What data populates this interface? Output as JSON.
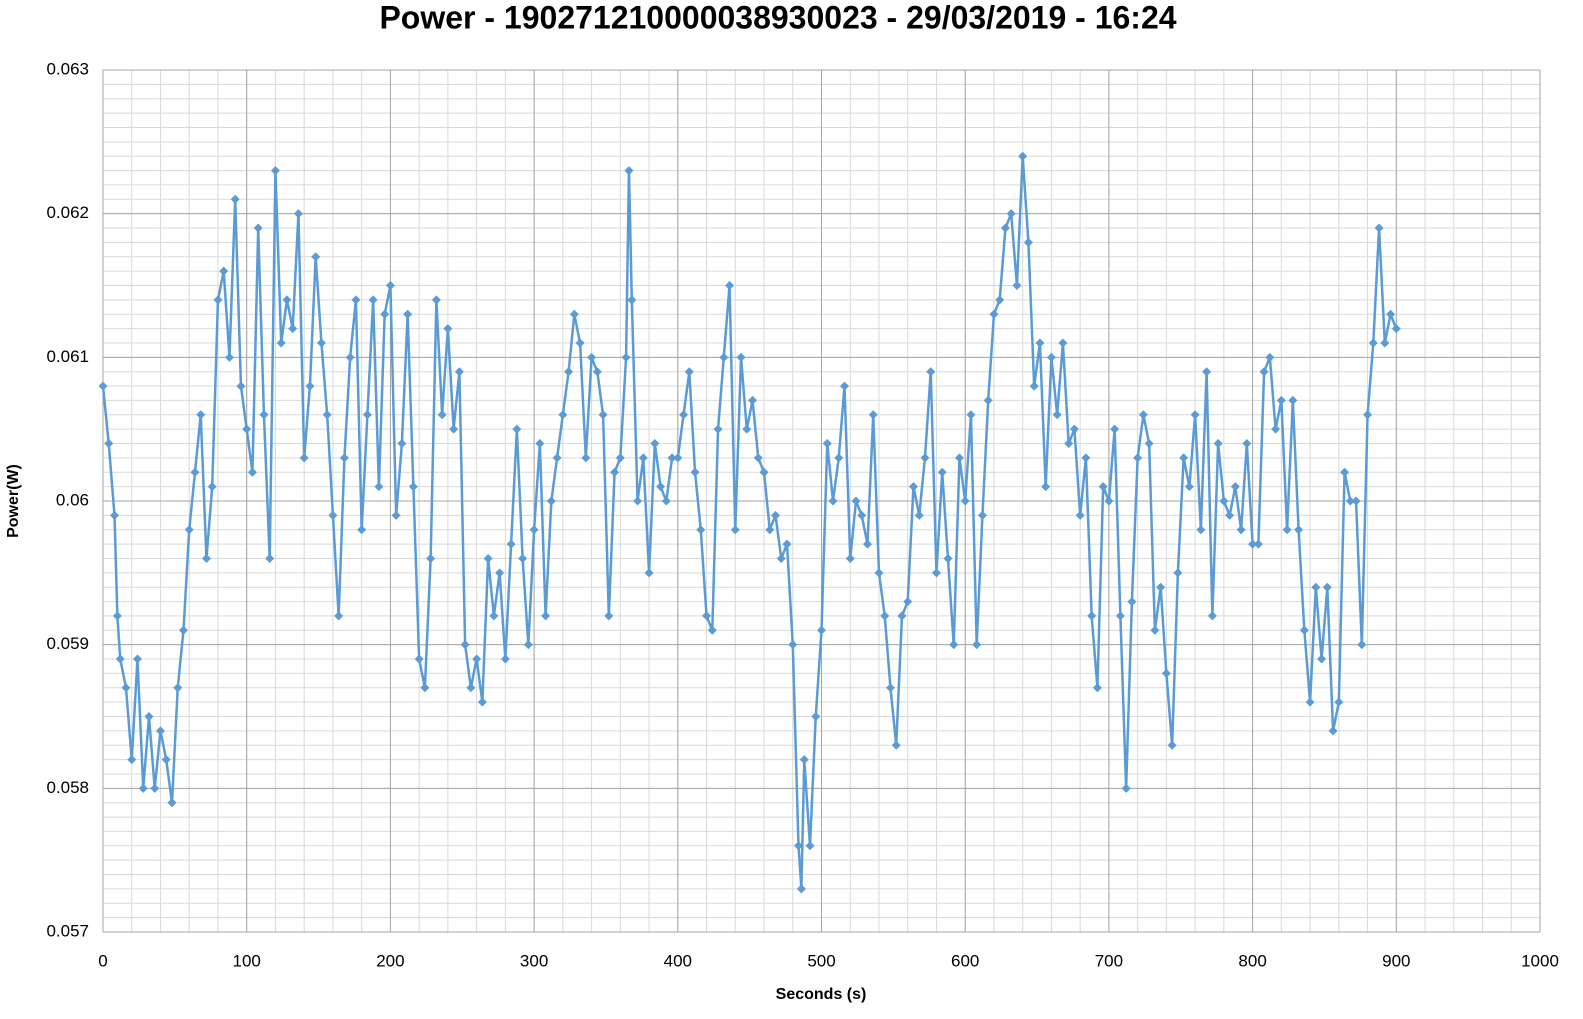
{
  "chart_data": {
    "type": "line",
    "title": "Power - 190271210000038930023 - 29/03/2019 - 16:24",
    "x_label": "Seconds (s)",
    "y_label": "Power(W)",
    "xlim": [
      0,
      1000
    ],
    "xticks": [
      0,
      100,
      200,
      300,
      400,
      500,
      600,
      700,
      800,
      900,
      1000
    ],
    "ylim": [
      0.057,
      0.063
    ],
    "yticks": [
      0.057,
      0.058,
      0.059,
      0.06,
      0.061,
      0.062,
      0.063
    ],
    "grid": true,
    "minor_grid": {
      "x": 20,
      "y": 0.0001
    },
    "marker": "diamond",
    "series": [
      {
        "name": "Power",
        "color": "#5b9bd5",
        "x": [
          0,
          4,
          8,
          10,
          12,
          16,
          20,
          24,
          28,
          32,
          36,
          40,
          44,
          48,
          52,
          56,
          60,
          64,
          68,
          72,
          76,
          80,
          84,
          88,
          92,
          96,
          100,
          104,
          108,
          112,
          116,
          120,
          124,
          128,
          132,
          136,
          140,
          144,
          148,
          152,
          156,
          160,
          164,
          168,
          172,
          176,
          180,
          184,
          188,
          192,
          196,
          200,
          204,
          208,
          212,
          216,
          220,
          224,
          228,
          232,
          236,
          240,
          244,
          248,
          252,
          256,
          260,
          264,
          268,
          272,
          276,
          280,
          284,
          288,
          292,
          296,
          300,
          304,
          308,
          312,
          316,
          320,
          324,
          328,
          332,
          336,
          340,
          344,
          348,
          352,
          356,
          360,
          364,
          366,
          368,
          372,
          376,
          380,
          384,
          388,
          392,
          396,
          400,
          404,
          408,
          412,
          416,
          420,
          424,
          428,
          432,
          436,
          440,
          444,
          448,
          452,
          456,
          460,
          464,
          468,
          472,
          476,
          480,
          484,
          486,
          488,
          492,
          496,
          500,
          504,
          508,
          512,
          516,
          520,
          524,
          528,
          532,
          536,
          540,
          544,
          548,
          552,
          556,
          560,
          564,
          568,
          572,
          576,
          580,
          584,
          588,
          592,
          596,
          600,
          604,
          608,
          612,
          616,
          620,
          624,
          628,
          632,
          636,
          640,
          644,
          648,
          652,
          656,
          660,
          664,
          668,
          672,
          676,
          680,
          684,
          688,
          692,
          696,
          700,
          704,
          708,
          712,
          716,
          720,
          724,
          728,
          732,
          736,
          740,
          744,
          748,
          752,
          756,
          760,
          764,
          768,
          772,
          776,
          780,
          784,
          788,
          792,
          796,
          800,
          804,
          808,
          812,
          816,
          820,
          824,
          828,
          832,
          836,
          840,
          844,
          848,
          852,
          856,
          860,
          864,
          868,
          872,
          876,
          880,
          884,
          888,
          892,
          896,
          900
        ],
        "values": [
          0.0608,
          0.0604,
          0.0599,
          0.0592,
          0.0589,
          0.0587,
          0.0582,
          0.0589,
          0.058,
          0.0585,
          0.058,
          0.0584,
          0.0582,
          0.0579,
          0.0587,
          0.0591,
          0.0598,
          0.0602,
          0.0606,
          0.0596,
          0.0601,
          0.0614,
          0.0616,
          0.061,
          0.0621,
          0.0608,
          0.0605,
          0.0602,
          0.0619,
          0.0606,
          0.0596,
          0.0623,
          0.0611,
          0.0614,
          0.0612,
          0.062,
          0.0603,
          0.0608,
          0.0617,
          0.0611,
          0.0606,
          0.0599,
          0.0592,
          0.0603,
          0.061,
          0.0614,
          0.0598,
          0.0606,
          0.0614,
          0.0601,
          0.0613,
          0.0615,
          0.0599,
          0.0604,
          0.0613,
          0.0601,
          0.0589,
          0.0587,
          0.0596,
          0.0614,
          0.0606,
          0.0612,
          0.0605,
          0.0609,
          0.059,
          0.0587,
          0.0589,
          0.0586,
          0.0596,
          0.0592,
          0.0595,
          0.0589,
          0.0597,
          0.0605,
          0.0596,
          0.059,
          0.0598,
          0.0604,
          0.0592,
          0.06,
          0.0603,
          0.0606,
          0.0609,
          0.0613,
          0.0611,
          0.0603,
          0.061,
          0.0609,
          0.0606,
          0.0592,
          0.0602,
          0.0603,
          0.061,
          0.0623,
          0.0614,
          0.06,
          0.0603,
          0.0595,
          0.0604,
          0.0601,
          0.06,
          0.0603,
          0.0603,
          0.0606,
          0.0609,
          0.0602,
          0.0598,
          0.0592,
          0.0591,
          0.0605,
          0.061,
          0.0615,
          0.0598,
          0.061,
          0.0605,
          0.0607,
          0.0603,
          0.0602,
          0.0598,
          0.0599,
          0.0596,
          0.0597,
          0.059,
          0.0576,
          0.0573,
          0.0582,
          0.0576,
          0.0585,
          0.0591,
          0.0604,
          0.06,
          0.0603,
          0.0608,
          0.0596,
          0.06,
          0.0599,
          0.0597,
          0.0606,
          0.0595,
          0.0592,
          0.0587,
          0.0583,
          0.0592,
          0.0593,
          0.0601,
          0.0599,
          0.0603,
          0.0609,
          0.0595,
          0.0602,
          0.0596,
          0.059,
          0.0603,
          0.06,
          0.0606,
          0.059,
          0.0599,
          0.0607,
          0.0613,
          0.0614,
          0.0619,
          0.062,
          0.0615,
          0.0624,
          0.0618,
          0.0608,
          0.0611,
          0.0601,
          0.061,
          0.0606,
          0.0611,
          0.0604,
          0.0605,
          0.0599,
          0.0603,
          0.0592,
          0.0587,
          0.0601,
          0.06,
          0.0605,
          0.0592,
          0.058,
          0.0593,
          0.0603,
          0.0606,
          0.0604,
          0.0591,
          0.0594,
          0.0588,
          0.0583,
          0.0595,
          0.0603,
          0.0601,
          0.0606,
          0.0598,
          0.0609,
          0.0592,
          0.0604,
          0.06,
          0.0599,
          0.0601,
          0.0598,
          0.0604,
          0.0597,
          0.0597,
          0.0609,
          0.061,
          0.0605,
          0.0607,
          0.0598,
          0.0607,
          0.0598,
          0.0591,
          0.0586,
          0.0594,
          0.0589,
          0.0594,
          0.0584,
          0.0586,
          0.0602,
          0.06,
          0.06,
          0.059,
          0.0606,
          0.0611,
          0.0619,
          0.0611,
          0.0613,
          0.0612
        ]
      }
    ]
  }
}
